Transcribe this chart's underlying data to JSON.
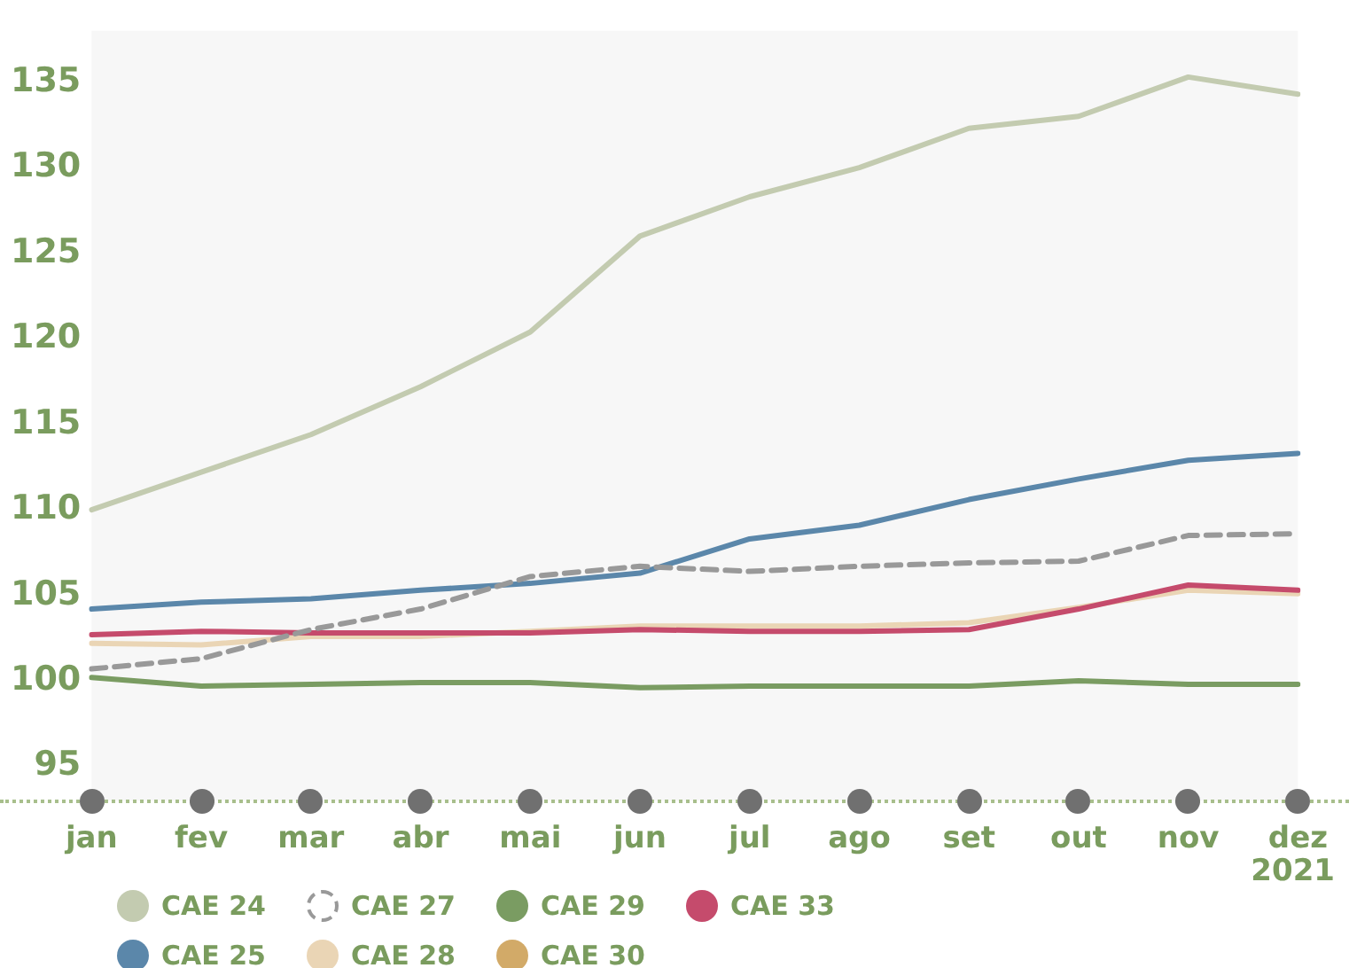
{
  "chart_data": {
    "type": "line",
    "categories": [
      "jan",
      "fev",
      "mar",
      "abr",
      "mai",
      "jun",
      "jul",
      "ago",
      "set",
      "out",
      "nov",
      "dez"
    ],
    "ylim": [
      93,
      138
    ],
    "yticks": [
      95,
      100,
      105,
      110,
      115,
      120,
      125,
      130,
      135
    ],
    "grid": false,
    "legend": "bottom",
    "marker": "none",
    "annotations": [
      "2021"
    ],
    "series": [
      {
        "name": "CAE 24",
        "color": "#c3cbb0",
        "values": [
          110.0,
          112.2,
          114.4,
          117.2,
          120.4,
          126.0,
          128.3,
          130.0,
          132.3,
          133.0,
          135.3,
          134.3
        ]
      },
      {
        "name": "CAE 27",
        "color": "#999999",
        "line_style": "dashed",
        "values": [
          100.7,
          101.3,
          103.0,
          104.2,
          106.1,
          106.7,
          106.4,
          106.7,
          106.9,
          107.0,
          108.5,
          108.6
        ]
      },
      {
        "name": "CAE 29",
        "color": "#7a9c62",
        "values": [
          100.2,
          99.7,
          99.8,
          99.9,
          99.9,
          99.6,
          99.7,
          99.7,
          99.7,
          100.0,
          99.8,
          99.8
        ]
      },
      {
        "name": "CAE 33",
        "color": "#c54b6c",
        "values": [
          102.7,
          102.9,
          102.8,
          102.8,
          102.8,
          103.0,
          102.9,
          102.9,
          103.0,
          104.2,
          105.6,
          105.3
        ]
      },
      {
        "name": "CAE 25",
        "color": "#5b87aa",
        "values": [
          104.2,
          104.6,
          104.8,
          105.3,
          105.7,
          106.3,
          108.3,
          109.1,
          110.6,
          111.8,
          112.9,
          113.3
        ]
      },
      {
        "name": "CAE 28",
        "color": "#ead5b5",
        "values": [
          102.2,
          102.1,
          102.6,
          102.6,
          102.9,
          103.2,
          103.2,
          103.2,
          103.4,
          104.3,
          105.3,
          105.1
        ]
      },
      {
        "name": "CAE 30",
        "color": "#d2aa68",
        "values": [
          null,
          null,
          null,
          null,
          null,
          null,
          null,
          null,
          null,
          null,
          null,
          null
        ]
      }
    ]
  }
}
